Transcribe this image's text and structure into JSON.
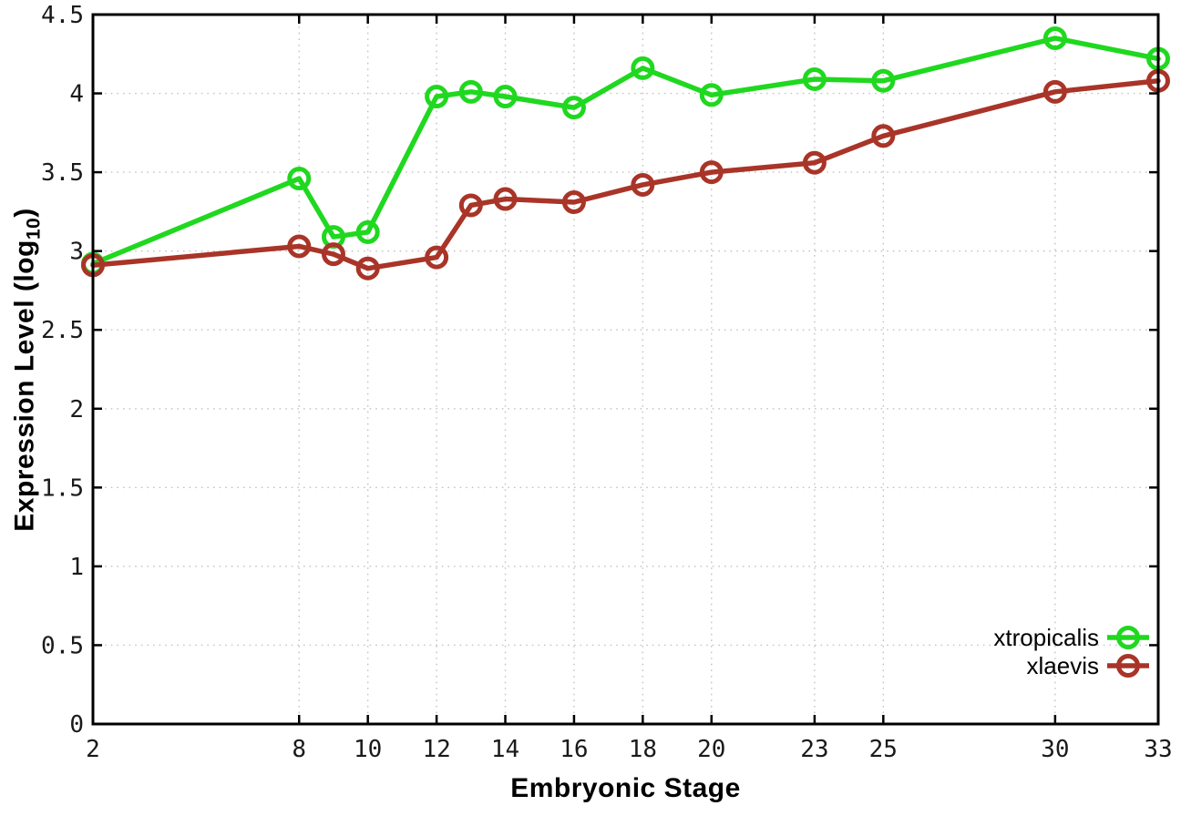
{
  "colors": {
    "grid": "#c3c3c3",
    "axis": "#000000",
    "tick_text": "#1a1a1a",
    "legend_text": "#000000",
    "xtropicalis": "#1fd81f",
    "xlaevis": "#a93428"
  },
  "chart_data": {
    "type": "line",
    "title": "",
    "xlabel": "Embryonic Stage",
    "ylabel": {
      "pre": "Expression Level (log",
      "sub": "10",
      "post": ")"
    },
    "xlim": [
      2,
      33
    ],
    "ylim": [
      0,
      4.5
    ],
    "grid": true,
    "legend_position": "bottom-right",
    "x_tick_values": [
      2,
      8,
      10,
      12,
      14,
      16,
      18,
      20,
      23,
      25,
      30,
      33
    ],
    "x_tick_labels": [
      "2",
      "8",
      "10",
      "12",
      "14",
      "16",
      "18",
      "20",
      "23",
      "25",
      "30",
      "33"
    ],
    "y_tick_values": [
      0,
      0.5,
      1,
      1.5,
      2,
      2.5,
      3,
      3.5,
      4,
      4.5
    ],
    "y_tick_labels": [
      "0",
      "0.5",
      "1",
      "1.5",
      "2",
      "2.5",
      "3",
      "3.5",
      "4",
      "4.5"
    ],
    "x": [
      2,
      8,
      9,
      10,
      12,
      13,
      14,
      16,
      18,
      20,
      23,
      25,
      30,
      33
    ],
    "series": [
      {
        "name": "xtropicalis",
        "color_key": "xtropicalis",
        "marker": "open-circle",
        "values": [
          2.92,
          3.46,
          3.09,
          3.12,
          3.98,
          4.01,
          3.98,
          3.91,
          4.16,
          3.99,
          4.09,
          4.08,
          4.35,
          4.22
        ]
      },
      {
        "name": "xlaevis",
        "color_key": "xlaevis",
        "marker": "open-circle",
        "values": [
          2.91,
          3.03,
          2.98,
          2.89,
          2.96,
          3.29,
          3.33,
          3.31,
          3.42,
          3.5,
          3.56,
          3.73,
          4.01,
          4.08
        ]
      }
    ]
  }
}
